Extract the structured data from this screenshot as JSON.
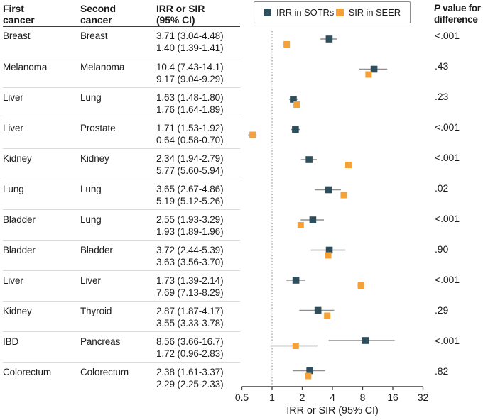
{
  "table": {
    "headers": {
      "first": [
        "First",
        "cancer"
      ],
      "second": [
        "Second",
        "cancer"
      ],
      "value": [
        "IRR or SIR",
        "(95% CI)"
      ]
    }
  },
  "pcol": {
    "header_p": "P",
    "header_rest": "value for",
    "header_line2": "difference"
  },
  "legend": {
    "series": [
      {
        "label": "IRR in SOTRs"
      },
      {
        "label": "SIR in SEER"
      }
    ]
  },
  "colors": {
    "teal": "#2E4E5B",
    "orange": "#F6A137",
    "ci": "#8F8F8F",
    "axis": "#3C3C3C",
    "refline": "#9A9A9A",
    "text": "#1C1C1C"
  },
  "chart_data": {
    "type": "scatter",
    "subtype": "forest-plot",
    "x_scale": "log2",
    "x_ticks": [
      0.5,
      1,
      2,
      4,
      8,
      16,
      32
    ],
    "x_tick_labels": [
      "0.5",
      "1",
      "2",
      "4",
      "8",
      "16",
      "32"
    ],
    "xlim": [
      0.5,
      32
    ],
    "reference_line": 1,
    "xlabel": "IRR or SIR (95% CI)",
    "grid": false,
    "legend_position": "top",
    "series": [
      {
        "name": "IRR in SOTRs",
        "marker": "square",
        "color": "#2E4E5B"
      },
      {
        "name": "SIR in SEER",
        "marker": "square",
        "color": "#F6A137"
      }
    ],
    "rows": [
      {
        "first": "Breast",
        "second": "Breast",
        "irr": {
          "est": 3.71,
          "lo": 3.04,
          "hi": 4.48,
          "label": "3.71 (3.04-4.48)"
        },
        "sir": {
          "est": 1.4,
          "lo": 1.39,
          "hi": 1.41,
          "label": "1.40 (1.39-1.41)"
        },
        "p": "<.001"
      },
      {
        "first": "Melanoma",
        "second": "Melanoma",
        "irr": {
          "est": 10.4,
          "lo": 7.43,
          "hi": 14.1,
          "label": "10.4 (7.43-14.1)"
        },
        "sir": {
          "est": 9.17,
          "lo": 9.04,
          "hi": 9.29,
          "label": "9.17 (9.04-9.29)"
        },
        "p": ".43"
      },
      {
        "first": "Liver",
        "second": "Lung",
        "irr": {
          "est": 1.63,
          "lo": 1.48,
          "hi": 1.8,
          "label": "1.63 (1.48-1.80)"
        },
        "sir": {
          "est": 1.76,
          "lo": 1.64,
          "hi": 1.89,
          "label": "1.76 (1.64-1.89)"
        },
        "p": ".23"
      },
      {
        "first": "Liver",
        "second": "Prostate",
        "irr": {
          "est": 1.71,
          "lo": 1.53,
          "hi": 1.92,
          "label": "1.71 (1.53-1.92)"
        },
        "sir": {
          "est": 0.64,
          "lo": 0.58,
          "hi": 0.7,
          "label": "0.64 (0.58-0.70)"
        },
        "p": "<.001"
      },
      {
        "first": "Kidney",
        "second": "Kidney",
        "irr": {
          "est": 2.34,
          "lo": 1.94,
          "hi": 2.79,
          "label": "2.34 (1.94-2.79)"
        },
        "sir": {
          "est": 5.77,
          "lo": 5.6,
          "hi": 5.94,
          "label": "5.77 (5.60-5.94)"
        },
        "p": "<.001"
      },
      {
        "first": "Lung",
        "second": "Lung",
        "irr": {
          "est": 3.65,
          "lo": 2.67,
          "hi": 4.86,
          "label": "3.65 (2.67-4.86)"
        },
        "sir": {
          "est": 5.19,
          "lo": 5.12,
          "hi": 5.26,
          "label": "5.19 (5.12-5.26)"
        },
        "p": ".02"
      },
      {
        "first": "Bladder",
        "second": "Lung",
        "irr": {
          "est": 2.55,
          "lo": 1.93,
          "hi": 3.29,
          "label": "2.55 (1.93-3.29)"
        },
        "sir": {
          "est": 1.93,
          "lo": 1.89,
          "hi": 1.96,
          "label": "1.93 (1.89-1.96)"
        },
        "p": "<.001"
      },
      {
        "first": "Bladder",
        "second": "Bladder",
        "irr": {
          "est": 3.72,
          "lo": 2.44,
          "hi": 5.39,
          "label": "3.72 (2.44-5.39)"
        },
        "sir": {
          "est": 3.63,
          "lo": 3.56,
          "hi": 3.7,
          "label": "3.63 (3.56-3.70)"
        },
        "p": ".90"
      },
      {
        "first": "Liver",
        "second": "Liver",
        "irr": {
          "est": 1.73,
          "lo": 1.39,
          "hi": 2.14,
          "label": "1.73 (1.39-2.14)"
        },
        "sir": {
          "est": 7.69,
          "lo": 7.13,
          "hi": 8.29,
          "label": "7.69 (7.13-8.29)"
        },
        "p": "<.001"
      },
      {
        "first": "Kidney",
        "second": "Thyroid",
        "irr": {
          "est": 2.87,
          "lo": 1.87,
          "hi": 4.17,
          "label": "2.87 (1.87-4.17)"
        },
        "sir": {
          "est": 3.55,
          "lo": 3.33,
          "hi": 3.78,
          "label": "3.55 (3.33-3.78)"
        },
        "p": ".29"
      },
      {
        "first": "IBD",
        "second": "Pancreas",
        "irr": {
          "est": 8.56,
          "lo": 3.66,
          "hi": 16.7,
          "label": "8.56 (3.66-16.7)"
        },
        "sir": {
          "est": 1.72,
          "lo": 0.96,
          "hi": 2.83,
          "label": "1.72 (0.96-2.83)"
        },
        "p": "<.001"
      },
      {
        "first": "Colorectum",
        "second": "Colorectum",
        "irr": {
          "est": 2.38,
          "lo": 1.61,
          "hi": 3.37,
          "label": "2.38 (1.61-3.37)"
        },
        "sir": {
          "est": 2.29,
          "lo": 2.25,
          "hi": 2.33,
          "label": "2.29 (2.25-2.33)"
        },
        "p": ".82"
      }
    ]
  }
}
